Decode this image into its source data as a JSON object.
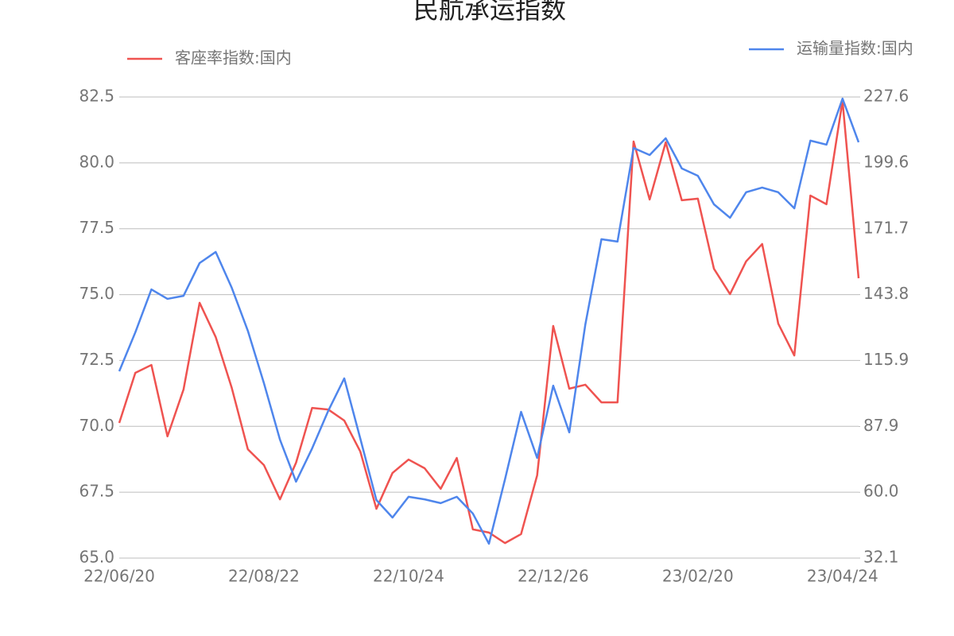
{
  "chart_data": {
    "type": "line",
    "title": "民航承运指数",
    "categories": [
      "22/06/20",
      null,
      null,
      null,
      null,
      null,
      null,
      null,
      null,
      "22/08/22",
      null,
      null,
      null,
      null,
      null,
      null,
      null,
      null,
      "22/10/24",
      null,
      null,
      null,
      null,
      null,
      null,
      null,
      null,
      "22/12/26",
      null,
      null,
      null,
      null,
      null,
      null,
      null,
      null,
      "23/02/20",
      null,
      null,
      null,
      null,
      null,
      null,
      null,
      null,
      "23/04/24",
      null
    ],
    "series": [
      {
        "name": "客座率指数:国内",
        "color": "#ef5350",
        "axis": "y",
        "values": [
          70.13,
          72.03,
          72.33,
          69.62,
          71.4,
          74.69,
          73.39,
          71.46,
          69.13,
          68.53,
          67.23,
          68.62,
          70.7,
          70.64,
          70.22,
          69.04,
          66.87,
          68.23,
          68.74,
          68.41,
          67.63,
          68.8,
          66.09,
          65.97,
          65.57,
          65.91,
          68.14,
          73.81,
          71.43,
          71.58,
          70.91,
          70.91,
          80.81,
          78.61,
          80.78,
          78.58,
          78.64,
          75.98,
          75.02,
          76.26,
          76.92,
          73.9,
          72.69,
          78.76,
          78.43,
          82.35,
          75.62
        ]
      },
      {
        "name": "运输量指数:国内",
        "color": "#4f86ec",
        "axis": "y2",
        "values": [
          111.3,
          127.8,
          146.0,
          142.0,
          143.3,
          157.2,
          161.9,
          146.7,
          128.5,
          106.3,
          82.3,
          64.5,
          78.6,
          94.5,
          108.3,
          82.7,
          56.7,
          49.3,
          58.1,
          57.0,
          55.4,
          58.1,
          51.0,
          38.2,
          65.5,
          94.1,
          74.6,
          105.2,
          85.4,
          131.2,
          167.3,
          166.3,
          206.0,
          203.0,
          210.1,
          197.3,
          194.2,
          182.1,
          176.4,
          187.2,
          189.2,
          187.2,
          180.4,
          209.1,
          207.4,
          226.9,
          208.4
        ]
      }
    ],
    "ylim": [
      65,
      82.5
    ],
    "yticks": [
      {
        "value": 65,
        "label": "65.0"
      },
      67.5,
      {
        "value": 70,
        "label": "70.0"
      },
      72.5,
      {
        "value": 75,
        "label": "75.0"
      },
      77.5,
      {
        "value": 80,
        "label": "80.0"
      },
      82.5
    ],
    "y2lim": [
      32.1,
      227.6
    ],
    "y2ticks": [
      32.1,
      {
        "value": 60,
        "label": "60.0"
      },
      87.9,
      115.9,
      143.8,
      171.7,
      199.6,
      227.6
    ],
    "grid": true
  }
}
